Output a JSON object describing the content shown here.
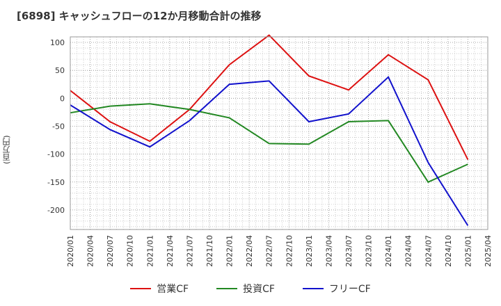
{
  "chart_data": {
    "type": "line",
    "title": "[6898]  キャッシュフローの12か月移動合計の推移",
    "ylabel": "(百万円)",
    "xlabel": "",
    "ylim": [
      -235,
      110
    ],
    "yticks": [
      100,
      50,
      0,
      -50,
      -100,
      -150,
      -200
    ],
    "categories": [
      "2020/01",
      "2020/04",
      "2020/07",
      "2020/10",
      "2021/01",
      "2021/04",
      "2021/07",
      "2021/10",
      "2022/01",
      "2022/04",
      "2022/07",
      "2022/10",
      "2023/01",
      "2023/04",
      "2023/07",
      "2023/10",
      "2024/01",
      "2024/04",
      "2024/07",
      "2024/10",
      "2025/01",
      "2025/04"
    ],
    "grid": true,
    "legend_position": "bottom",
    "series": [
      {
        "name": "営業CF",
        "color": "#dd1111",
        "x": [
          "2020/01",
          "2020/07",
          "2021/01",
          "2021/07",
          "2022/01",
          "2022/07",
          "2023/01",
          "2023/07",
          "2024/01",
          "2024/07",
          "2025/01"
        ],
        "values": [
          14,
          -42,
          -77,
          -20,
          60,
          113,
          40,
          15,
          78,
          33,
          -110
        ]
      },
      {
        "name": "投資CF",
        "color": "#228822",
        "x": [
          "2020/01",
          "2020/07",
          "2021/01",
          "2021/07",
          "2022/01",
          "2022/07",
          "2023/01",
          "2023/07",
          "2024/01",
          "2024/07",
          "2025/01"
        ],
        "values": [
          -26,
          -14,
          -10,
          -20,
          -35,
          -81,
          -82,
          -42,
          -40,
          -150,
          -118
        ]
      },
      {
        "name": "フリーCF",
        "color": "#1111cc",
        "x": [
          "2020/01",
          "2020/07",
          "2021/01",
          "2021/07",
          "2022/01",
          "2022/07",
          "2023/01",
          "2023/07",
          "2024/01",
          "2024/07",
          "2025/01"
        ],
        "values": [
          -12,
          -56,
          -87,
          -40,
          25,
          31,
          -42,
          -28,
          38,
          -115,
          -228
        ]
      }
    ]
  }
}
